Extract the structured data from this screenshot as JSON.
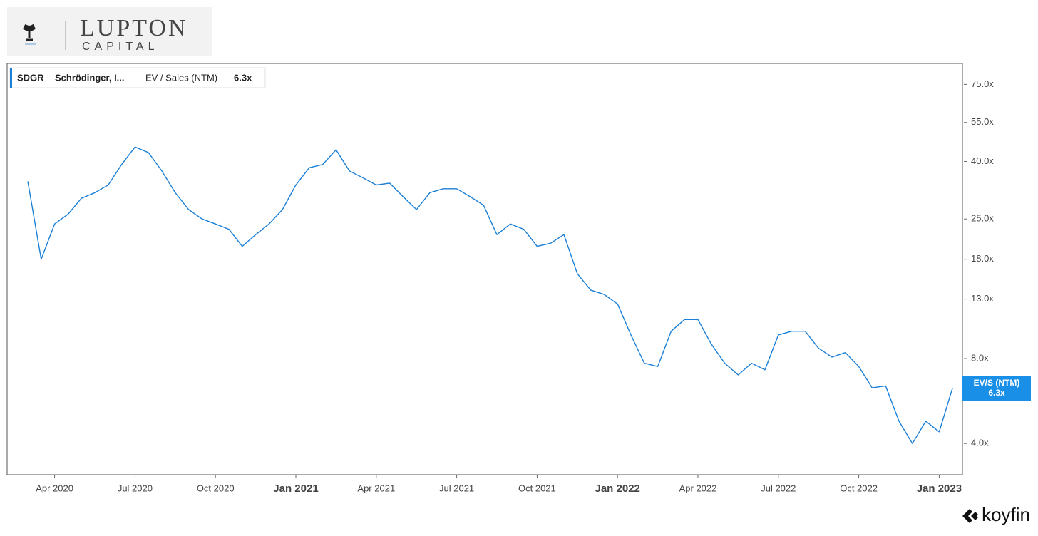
{
  "branding": {
    "logo_name": "LUPTON",
    "logo_sub": "CAPITAL",
    "source": "koyfin"
  },
  "chart_data": {
    "type": "line",
    "ticker": "SDGR",
    "company": "Schrödinger, I...",
    "tag": {
      "name": "EV/S (NTM)",
      "value_label": "6.3x"
    },
    "categories": [
      null,
      null,
      "Apr 2020",
      null,
      null,
      null,
      null,
      null,
      "Jul 2020",
      null,
      null,
      null,
      null,
      null,
      "Oct 2020",
      null,
      null,
      null,
      null,
      null,
      "Jan 2021",
      null,
      null,
      null,
      null,
      null,
      "Apr 2021",
      null,
      null,
      null,
      null,
      null,
      "Jul 2021",
      null,
      null,
      null,
      null,
      null,
      "Oct 2021",
      null,
      null,
      null,
      null,
      null,
      "Jan 2022",
      null,
      null,
      null,
      null,
      null,
      "Apr 2022",
      null,
      null,
      null,
      null,
      null,
      "Jul 2022",
      null,
      null,
      null,
      null,
      null,
      "Oct 2022",
      null,
      null,
      null,
      null,
      null,
      "Jan 2023",
      null
    ],
    "series": [
      {
        "name": "EV / Sales (NTM)",
        "color": "#1a7fd6",
        "values": [
          34,
          18,
          24,
          26,
          29.6,
          31,
          33,
          39,
          45,
          43,
          37,
          31,
          27,
          25,
          24,
          23,
          20,
          22,
          24,
          27,
          33,
          38,
          39,
          44,
          37,
          35,
          33,
          33.5,
          30,
          27,
          31,
          32,
          32,
          30,
          28,
          22,
          24,
          23,
          20,
          20.5,
          22,
          16,
          14,
          13.5,
          12.5,
          9.7,
          7.7,
          7.5,
          10,
          11,
          11,
          9,
          7.7,
          7,
          7.7,
          7.3,
          9.7,
          10,
          10,
          8.7,
          8.1,
          8.4,
          7.5,
          6.3,
          6.4,
          4.8,
          4.0,
          4.8,
          4.4,
          6.3
        ],
        "last_label": "6.3x"
      }
    ],
    "log_y": true,
    "ylim": [
      3.1,
      89
    ],
    "yticks": [
      {
        "value": 4,
        "label": "4.0x"
      },
      {
        "value": 8,
        "label": "8.0x"
      },
      {
        "value": 13,
        "label": "13.0x"
      },
      {
        "value": 18,
        "label": "18.0x"
      },
      {
        "value": 25,
        "label": "25.0x"
      },
      {
        "value": 40,
        "label": "40.0x"
      },
      {
        "value": 55,
        "label": "55.0x"
      },
      {
        "value": 75,
        "label": "75.0x"
      }
    ],
    "grid": false
  }
}
